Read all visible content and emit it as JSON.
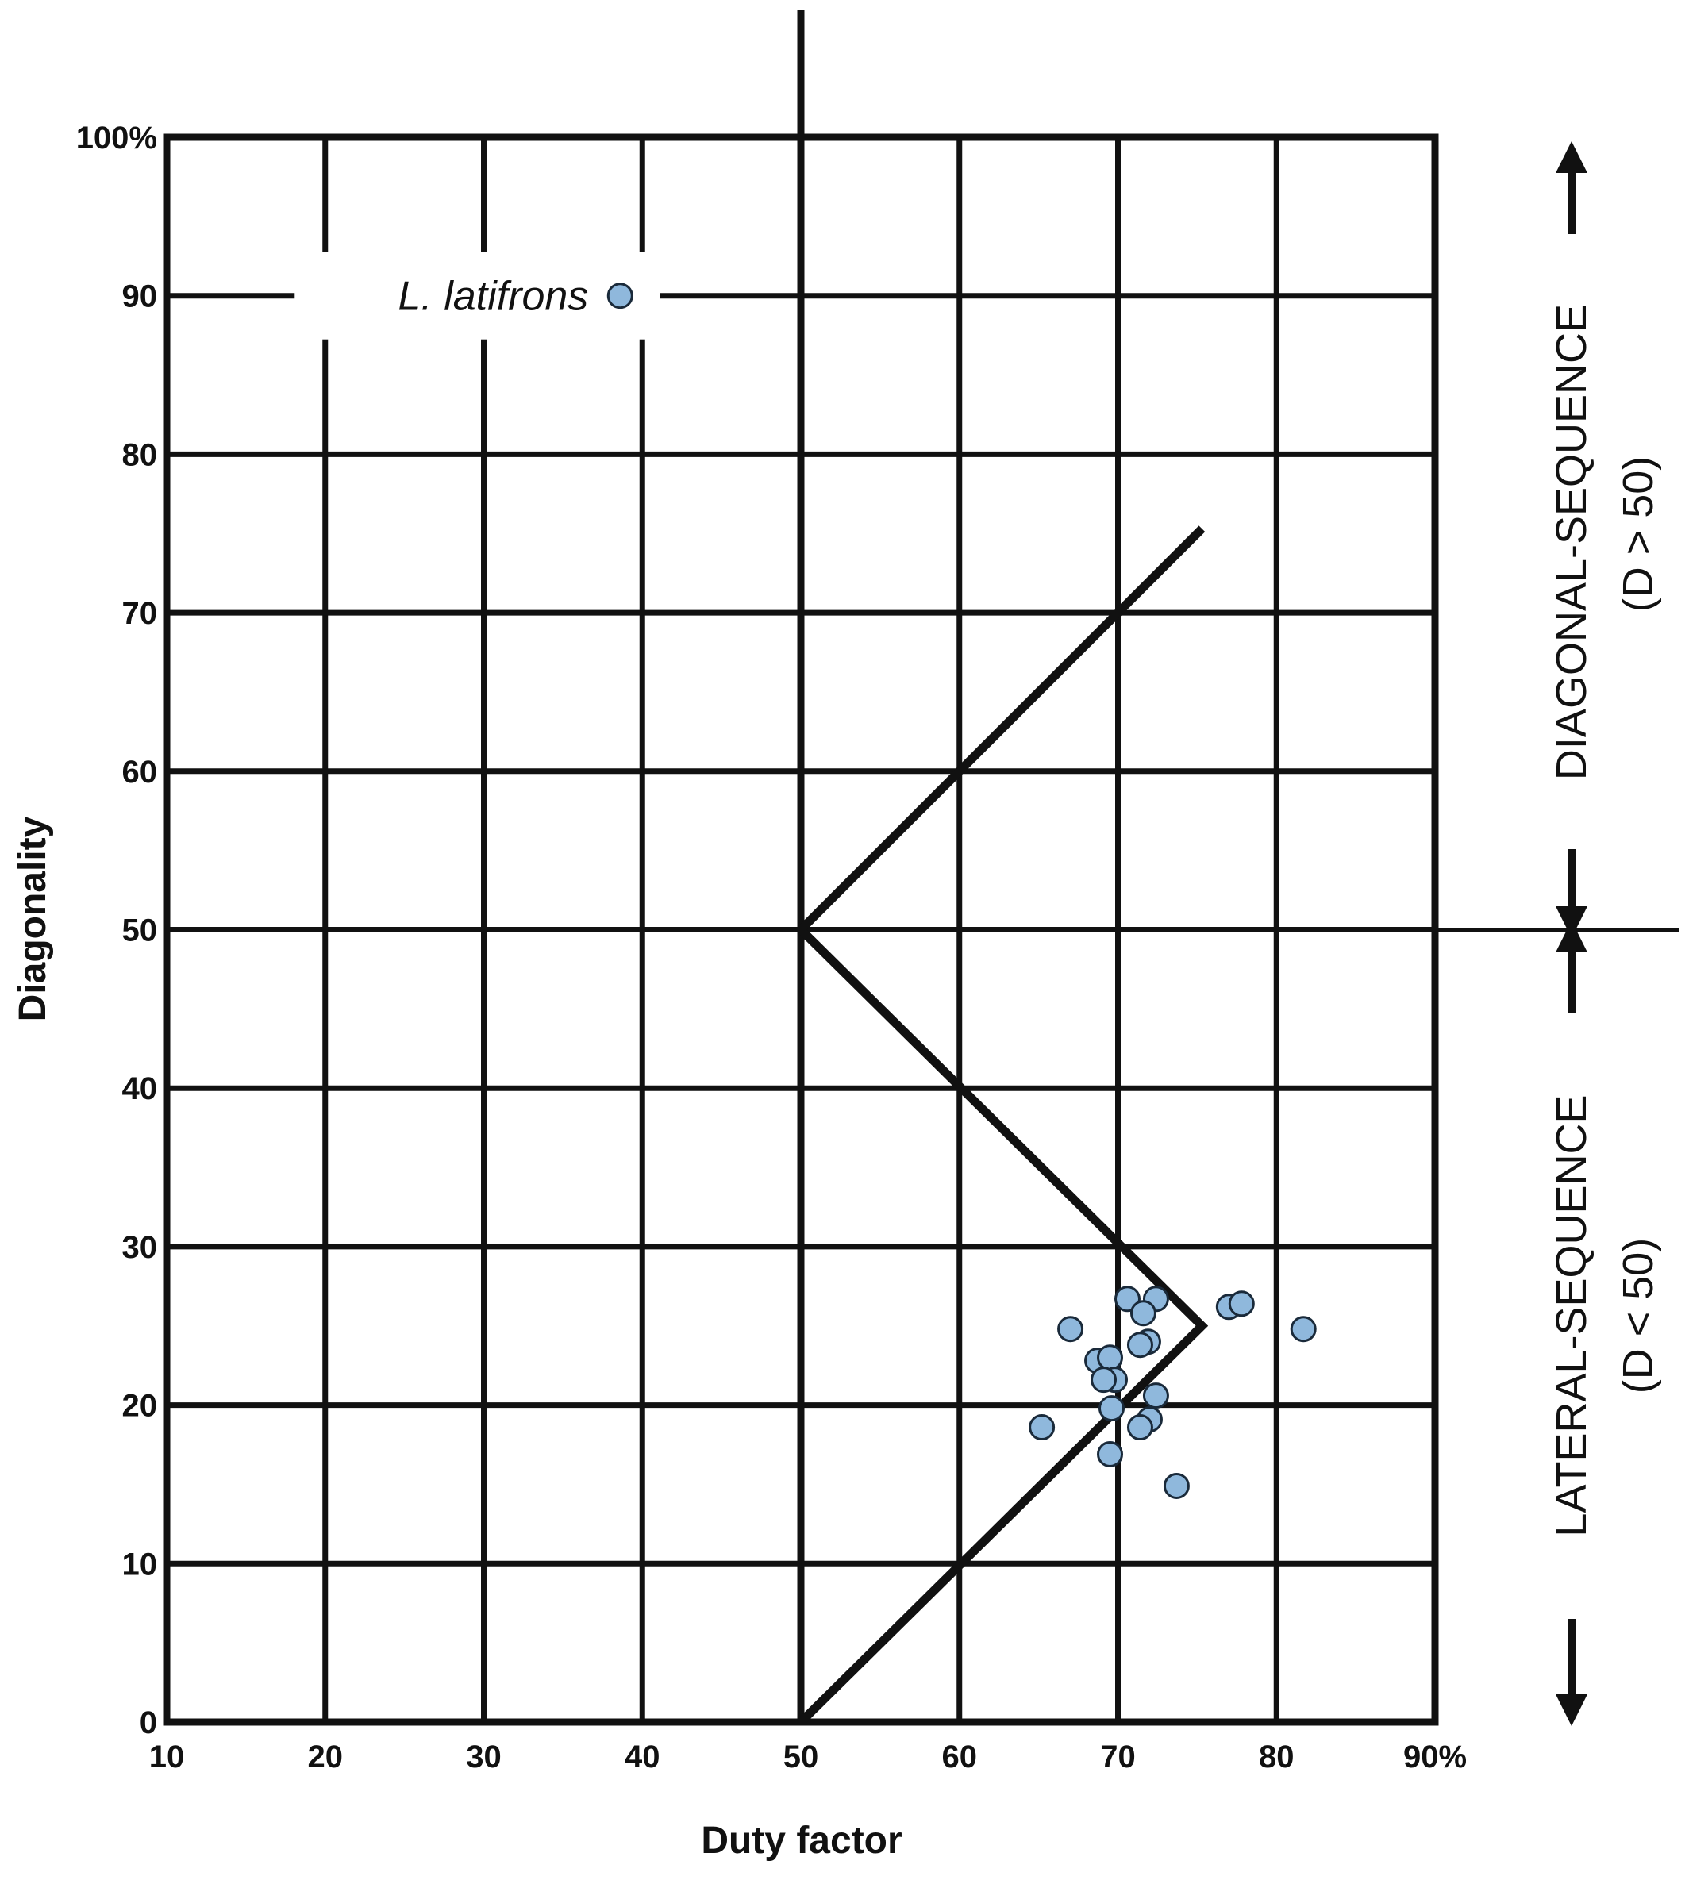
{
  "chart_data": {
    "type": "scatter",
    "xlabel": "Duty factor",
    "ylabel": "Diagonality",
    "xlim": [
      10,
      90
    ],
    "ylim": [
      0,
      100
    ],
    "x_ticks": [
      "10",
      "20",
      "30",
      "40",
      "50",
      "60",
      "70",
      "80",
      "90%"
    ],
    "y_ticks": [
      "0",
      "10",
      "20",
      "30",
      "40",
      "50",
      "60",
      "70",
      "80",
      "90",
      "100%"
    ],
    "grid": true,
    "colors": {
      "point_fill": "#8fb8dc",
      "point_edge": "#1a2a3a",
      "lines": "#111111"
    },
    "annotation": {
      "text": "L. latifrons",
      "point": {
        "x": 38.6,
        "y": 90
      }
    },
    "boundary": [
      {
        "x": 75.3,
        "y": 75.3
      },
      {
        "x": 50,
        "y": 50
      },
      {
        "x": 75.3,
        "y": 25
      },
      {
        "x": 50,
        "y": 0
      }
    ],
    "points": [
      {
        "x": 70.6,
        "y": 26.7
      },
      {
        "x": 72.4,
        "y": 26.7
      },
      {
        "x": 71.6,
        "y": 25.8
      },
      {
        "x": 77.0,
        "y": 26.2
      },
      {
        "x": 77.8,
        "y": 26.4
      },
      {
        "x": 81.7,
        "y": 24.8
      },
      {
        "x": 67.0,
        "y": 24.8
      },
      {
        "x": 71.9,
        "y": 24.0
      },
      {
        "x": 71.4,
        "y": 23.8
      },
      {
        "x": 68.7,
        "y": 22.8
      },
      {
        "x": 69.5,
        "y": 23.0
      },
      {
        "x": 69.8,
        "y": 21.6
      },
      {
        "x": 69.1,
        "y": 21.6
      },
      {
        "x": 72.4,
        "y": 20.6
      },
      {
        "x": 69.6,
        "y": 19.8
      },
      {
        "x": 72.0,
        "y": 19.1
      },
      {
        "x": 71.4,
        "y": 18.6
      },
      {
        "x": 65.2,
        "y": 18.6
      },
      {
        "x": 69.5,
        "y": 16.9
      },
      {
        "x": 73.7,
        "y": 14.9
      }
    ],
    "region_labels": {
      "upper_line1": "DIAGONAL-SEQUENCE",
      "upper_line2": "(D > 50)",
      "lower_line1": "LATERAL-SEQUENCE",
      "lower_line2": "(D < 50)"
    }
  }
}
